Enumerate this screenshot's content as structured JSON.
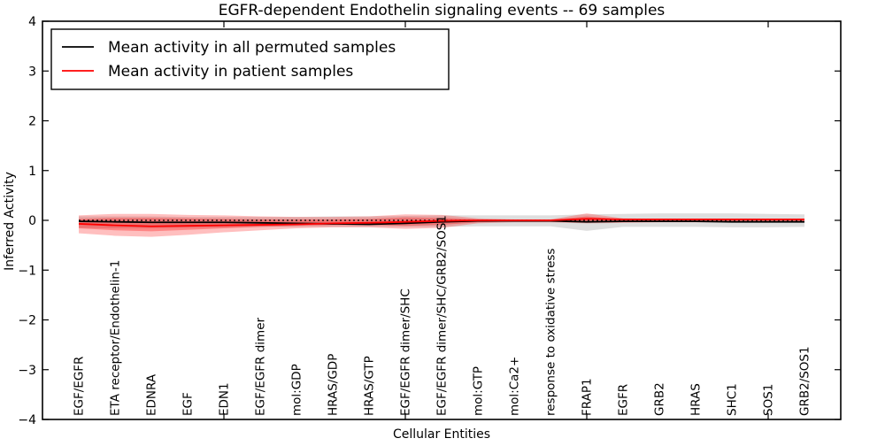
{
  "chart_data": {
    "type": "line",
    "title": "EGFR-dependent Endothelin signaling events -- 69 samples",
    "xlabel": "Cellular Entities",
    "ylabel": "Inferred Activity",
    "ylim": [
      -4,
      4
    ],
    "yticks": [
      4,
      3,
      2,
      1,
      0,
      -1,
      -2,
      -3,
      -4
    ],
    "xlim": [
      0,
      22
    ],
    "xticks_unlabeled": [
      5,
      10,
      15,
      20
    ],
    "grid": false,
    "legend_position": "upper left",
    "categories": [
      "EGF/EGFR",
      "ETA receptor/Endothelin-1",
      "EDNRA",
      "EGF",
      "EDN1",
      "EGF/EGFR dimer",
      "mol:GDP",
      "HRAS/GDP",
      "HRAS/GTP",
      "EGF/EGFR dimer/SHC",
      "EGF/EGFR dimer/SHC/GRB2/SOS1",
      "mol:GTP",
      "mol:Ca2+",
      "response to oxidative stress",
      "FRAP1",
      "EGFR",
      "GRB2",
      "HRAS",
      "SHC1",
      "SOS1",
      "GRB2/SOS1"
    ],
    "x": [
      1,
      2,
      3,
      4,
      5,
      6,
      7,
      8,
      9,
      10,
      11,
      12,
      13,
      14,
      15,
      16,
      17,
      18,
      19,
      20,
      21
    ],
    "zero_line": 0,
    "series": [
      {
        "name": "Mean activity in all permuted samples",
        "color": "#000000",
        "values": [
          -0.02,
          -0.03,
          -0.04,
          -0.04,
          -0.04,
          -0.05,
          -0.06,
          -0.07,
          -0.08,
          -0.06,
          -0.03,
          -0.01,
          -0.01,
          -0.01,
          -0.03,
          -0.02,
          -0.02,
          -0.02,
          -0.03,
          -0.03,
          -0.03
        ]
      },
      {
        "name": "Mean activity in patient samples",
        "color": "#ff0000",
        "values": [
          -0.07,
          -0.1,
          -0.12,
          -0.11,
          -0.1,
          -0.09,
          -0.08,
          -0.06,
          -0.05,
          -0.03,
          -0.01,
          0.0,
          0.0,
          0.0,
          0.03,
          0.02,
          0.02,
          0.02,
          0.02,
          0.02,
          0.02
        ]
      }
    ],
    "bands": [
      {
        "name": "permuted-samples-band",
        "color": "#000000",
        "opacity": 0.13,
        "upper": [
          0.08,
          0.08,
          0.08,
          0.07,
          0.07,
          0.07,
          0.07,
          0.08,
          0.08,
          0.09,
          0.1,
          0.1,
          0.1,
          0.1,
          0.12,
          0.13,
          0.14,
          0.14,
          0.14,
          0.13,
          0.12
        ],
        "lower": [
          -0.15,
          -0.16,
          -0.16,
          -0.15,
          -0.14,
          -0.13,
          -0.13,
          -0.13,
          -0.13,
          -0.13,
          -0.13,
          -0.12,
          -0.12,
          -0.12,
          -0.21,
          -0.13,
          -0.13,
          -0.13,
          -0.14,
          -0.14,
          -0.13
        ]
      },
      {
        "name": "patient-samples-band-outer",
        "color": "#ff0000",
        "opacity": 0.25,
        "upper": [
          0.1,
          0.13,
          0.13,
          0.11,
          0.1,
          0.08,
          0.07,
          0.07,
          0.08,
          0.12,
          0.11,
          0.04,
          0.02,
          0.02,
          0.14,
          0.04,
          0.03,
          0.03,
          0.03,
          0.03,
          0.03
        ],
        "lower": [
          -0.26,
          -0.31,
          -0.33,
          -0.29,
          -0.24,
          -0.2,
          -0.16,
          -0.14,
          -0.14,
          -0.17,
          -0.15,
          -0.06,
          -0.04,
          -0.04,
          -0.06,
          -0.05,
          -0.04,
          -0.04,
          -0.04,
          -0.04,
          -0.04
        ]
      },
      {
        "name": "patient-samples-band-inner",
        "color": "#ff0000",
        "opacity": 0.3,
        "upper": [
          0.03,
          0.05,
          0.05,
          0.04,
          0.03,
          0.02,
          0.02,
          0.02,
          0.03,
          0.06,
          0.05,
          0.02,
          0.01,
          0.01,
          0.08,
          0.02,
          0.01,
          0.01,
          0.01,
          0.01,
          0.01
        ],
        "lower": [
          -0.16,
          -0.2,
          -0.22,
          -0.19,
          -0.16,
          -0.13,
          -0.11,
          -0.09,
          -0.09,
          -0.11,
          -0.09,
          -0.04,
          -0.02,
          -0.02,
          -0.03,
          -0.03,
          -0.02,
          -0.02,
          -0.02,
          -0.02,
          -0.02
        ]
      }
    ]
  },
  "legend": {
    "items": [
      {
        "label": "Mean activity in all permuted samples",
        "color": "#000000"
      },
      {
        "label": "Mean activity in patient samples",
        "color": "#ff0000"
      }
    ]
  }
}
